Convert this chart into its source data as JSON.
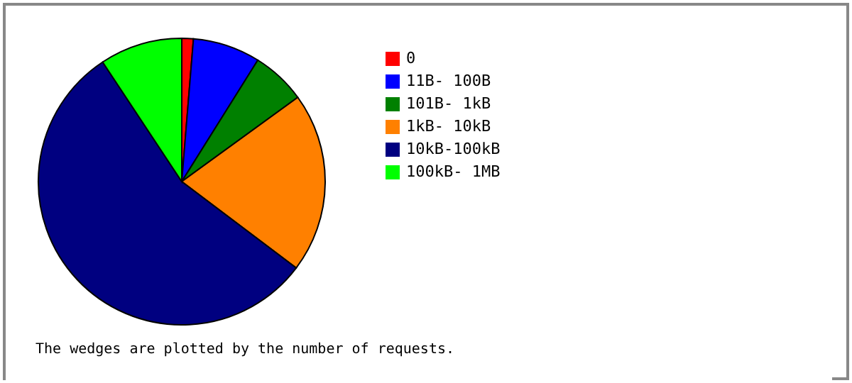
{
  "chart_data": {
    "type": "pie",
    "categories": [
      "0",
      "11B- 100B",
      "101B-  1kB",
      "1kB- 10kB",
      "10kB-100kB",
      "100kB-  1MB"
    ],
    "values": [
      1.3,
      7.6,
      6.1,
      20.3,
      55.4,
      9.3
    ],
    "colors": [
      "#ff0000",
      "#0000ff",
      "#008000",
      "#ff8000",
      "#000080",
      "#00ff00"
    ],
    "legend": "right",
    "annotations": [
      "The wedges are plotted by the number of requests."
    ]
  }
}
